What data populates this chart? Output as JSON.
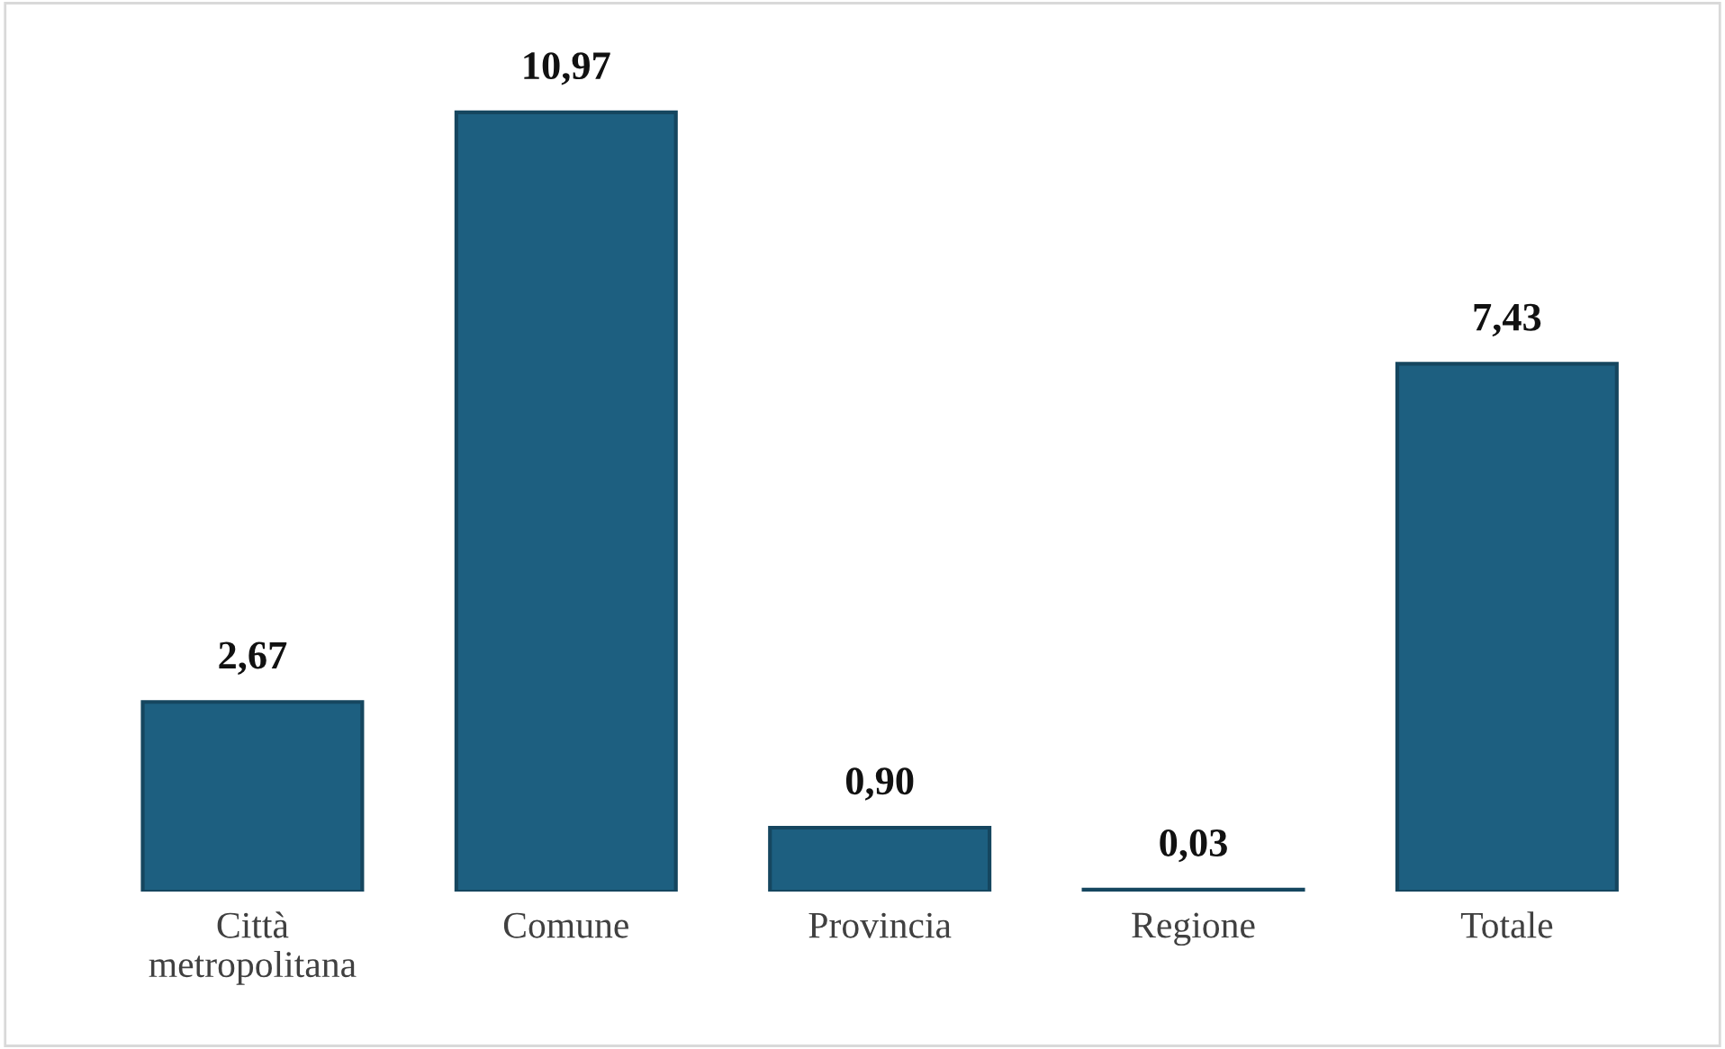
{
  "chart_data": {
    "type": "bar",
    "categories": [
      "Città\nmetropolitana",
      "Comune",
      "Provincia",
      "Regione",
      "Totale"
    ],
    "values": [
      2.67,
      10.97,
      0.9,
      0.03,
      7.43
    ],
    "value_labels": [
      "2,67",
      "10,97",
      "0,90",
      "0,03",
      "7,43"
    ],
    "color": "#1d5f80",
    "grid": false,
    "legend": false
  }
}
